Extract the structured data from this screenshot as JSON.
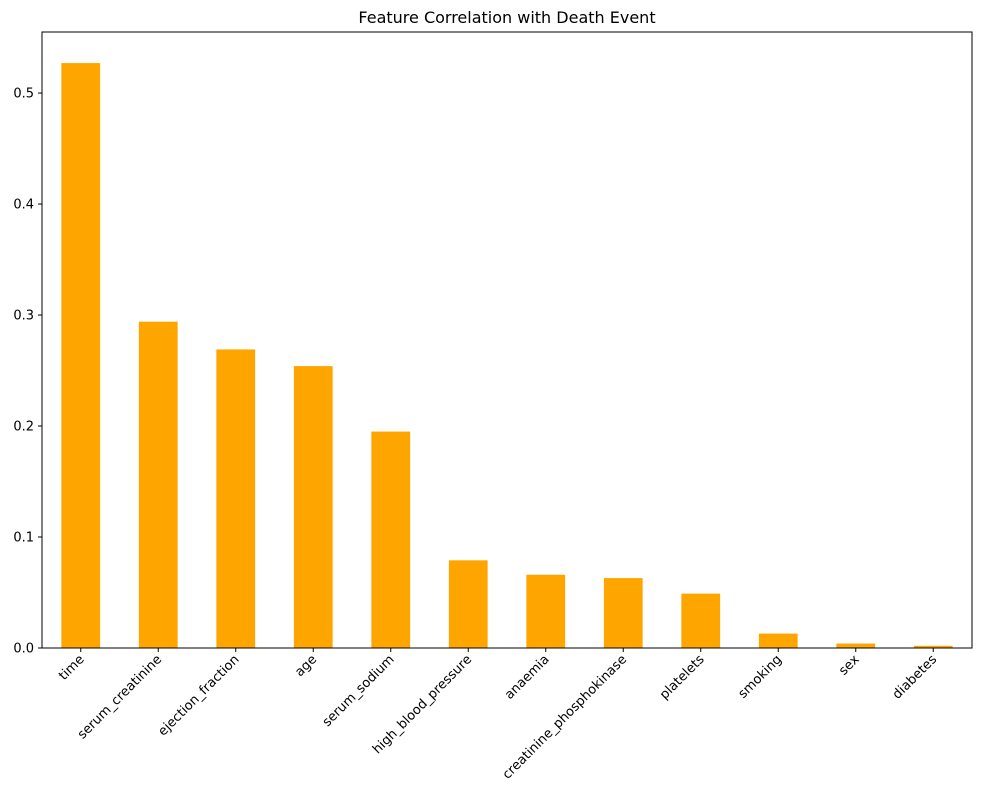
{
  "chart_data": {
    "type": "bar",
    "title": "Feature Correlation with Death Event",
    "xlabel": "",
    "ylabel": "",
    "categories": [
      "time",
      "serum_creatinine",
      "ejection_fraction",
      "age",
      "serum_sodium",
      "high_blood_pressure",
      "anaemia",
      "creatinine_phosphokinase",
      "platelets",
      "smoking",
      "sex",
      "diabetes"
    ],
    "values": [
      0.527,
      0.294,
      0.269,
      0.254,
      0.195,
      0.079,
      0.066,
      0.063,
      0.049,
      0.013,
      0.004,
      0.002
    ],
    "ylim": [
      0,
      0.555
    ],
    "yticks": [
      "0.0",
      "0.1",
      "0.2",
      "0.3",
      "0.4",
      "0.5"
    ],
    "ytick_values": [
      0.0,
      0.1,
      0.2,
      0.3,
      0.4,
      0.5
    ],
    "bar_color": "#FFA500",
    "grid": false,
    "legend": "none",
    "xtick_rotation_deg": 45
  }
}
